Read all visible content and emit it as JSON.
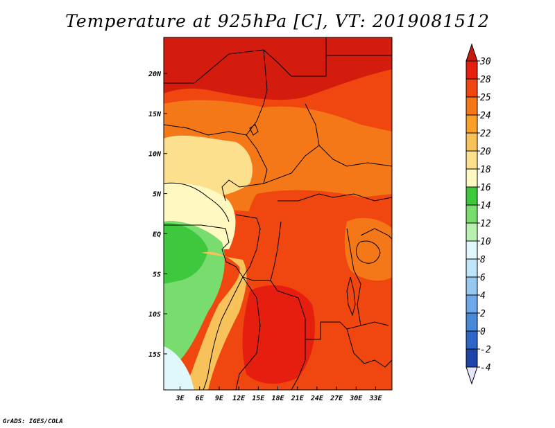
{
  "title": "Temperature at 925hPa [C], VT: 2019081512",
  "credit": "GrADS: IGES/COLA",
  "map": {
    "lon_labels": [
      "3E",
      "6E",
      "9E",
      "12E",
      "15E",
      "18E",
      "21E",
      "24E",
      "27E",
      "30E",
      "33E"
    ],
    "lon_values": [
      3,
      6,
      9,
      12,
      15,
      18,
      21,
      24,
      27,
      30,
      33
    ],
    "lat_labels": [
      "20N",
      "15N",
      "10N",
      "5N",
      "EQ",
      "5S",
      "10S",
      "15S"
    ],
    "lat_values": [
      20,
      15,
      10,
      5,
      0,
      -5,
      -10,
      -15
    ],
    "lon_range": [
      0.5,
      35.5
    ],
    "lat_range": [
      -19.5,
      24.5
    ]
  },
  "colorbar": {
    "labels": [
      "30",
      "28",
      "25",
      "24",
      "22",
      "20",
      "18",
      "16",
      "14",
      "12",
      "10",
      "8",
      "6",
      "4",
      "2",
      "0",
      "-2",
      "-4"
    ],
    "colors": [
      "#e51e10",
      "#f04610",
      "#f57818",
      "#f8a028",
      "#f7c25a",
      "#fde08e",
      "#fff8c0",
      "#3ec83e",
      "#78dc6e",
      "#b8f0b0",
      "#e0f8fc",
      "#bee6f8",
      "#96c8f0",
      "#6ea8e8",
      "#4a88d8",
      "#2e66c8",
      "#1e46a8",
      "#0c1e6c"
    ],
    "top_arrow_color": "#c61a0c",
    "bottom_arrow_color": "#e4e4fa"
  },
  "palette": {
    "ocean_cold": "#e0f8fc",
    "ocean_cool": "#b8f0b0",
    "green_mid": "#78dc6e",
    "green_dark": "#3ec83e",
    "light_yellow": "#fff8c0",
    "yellow": "#fde08e",
    "light_orange": "#f7c25a",
    "orange": "#f8a028",
    "dark_orange": "#f57818",
    "red_orange": "#f04610",
    "red": "#e51e10",
    "dark_red": "#d41c0e"
  }
}
